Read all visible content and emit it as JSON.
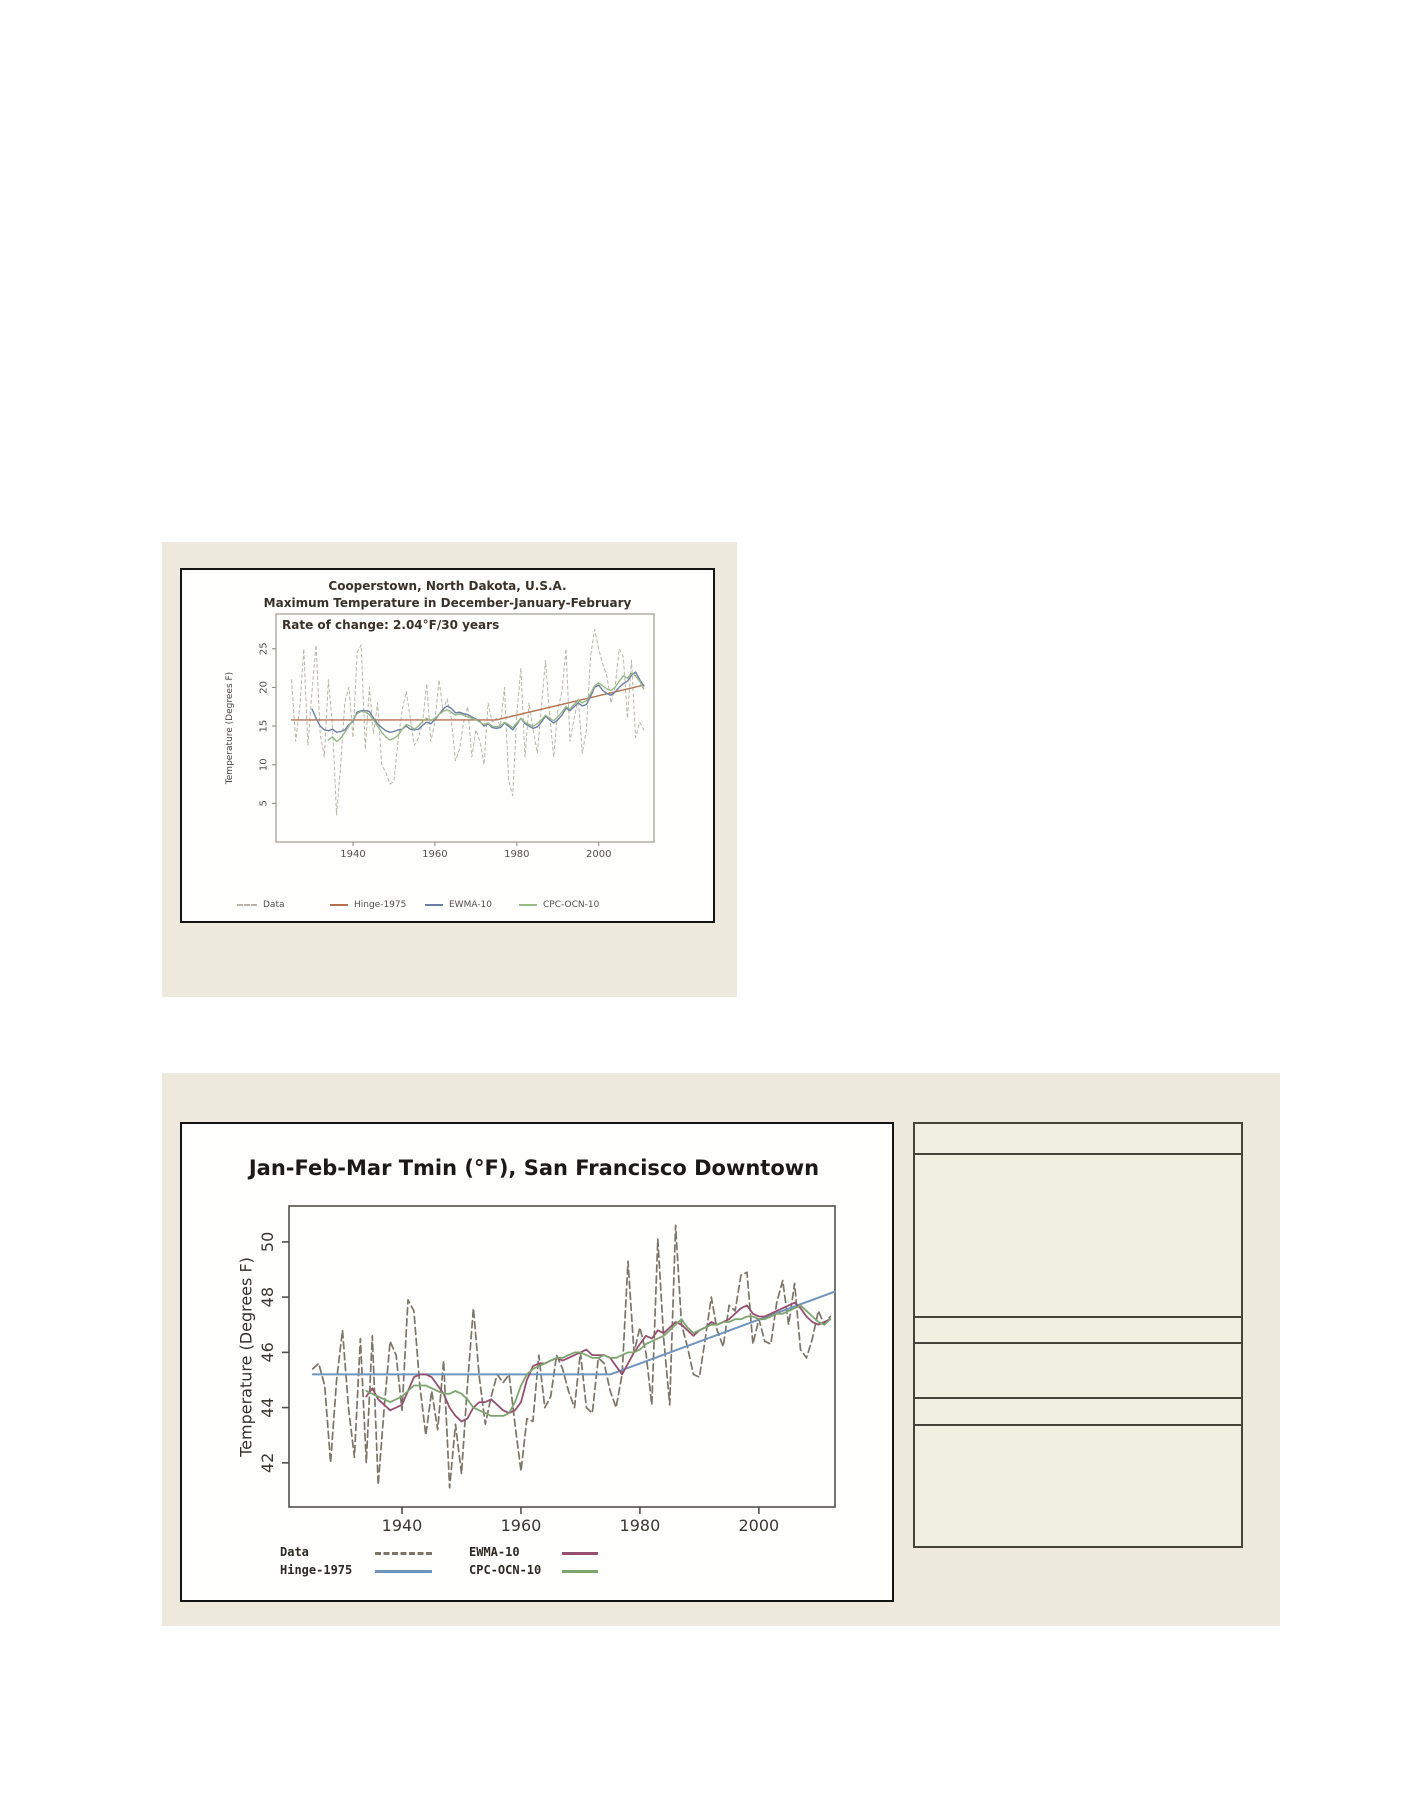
{
  "page": {
    "background": "#ffffff",
    "panel_color": "#edeadd",
    "table_cell_color": "#f1eee2",
    "table_border_color": "#45433a"
  },
  "chart_data": [
    {
      "type": "line",
      "title": "Cooperstown, North Dakota, U.S.A.",
      "subtitle": "Maximum Temperature in December-January-February",
      "annotation": "Rate of change: 2.04°F/30 years",
      "xlabel": "",
      "ylabel": "Temperature (Degrees F)",
      "xticks": [
        1940,
        1960,
        1980,
        2000
      ],
      "yticks": [
        5,
        10,
        15,
        20,
        25
      ],
      "xlim": [
        1921.2,
        2013.5
      ],
      "ylim": [
        0,
        29.5
      ],
      "grid": false,
      "legend_position": "bottom",
      "axis_color": "#8a8578",
      "text_color": "#55504a",
      "series": [
        {
          "name": "Data",
          "color": "#b9b4a6",
          "width": 1,
          "dash": [
            3,
            3
          ],
          "x_start": 1925,
          "x_step": 1,
          "values": [
            21,
            13,
            17.5,
            25,
            12.5,
            19.5,
            25.5,
            14,
            11,
            21,
            15,
            3.5,
            10,
            18,
            20,
            13.5,
            24.5,
            25.5,
            12,
            20,
            14,
            18,
            10,
            9,
            7.5,
            7.8,
            13,
            17,
            19.5,
            16,
            12.5,
            13.5,
            15.5,
            20.5,
            13,
            15.5,
            21,
            17,
            18.5,
            16,
            10.5,
            12,
            15.5,
            17.5,
            11,
            14.5,
            13,
            10,
            18,
            15.5,
            16,
            15,
            20,
            8,
            6,
            16.5,
            22.5,
            11,
            18,
            14.5,
            11.5,
            17.5,
            23.5,
            16.5,
            11,
            17,
            19.5,
            25,
            13,
            16,
            18.5,
            11.5,
            14.5,
            24,
            27.5,
            25,
            23,
            21.5,
            18,
            20,
            25,
            24,
            16,
            23.5,
            13.5,
            15.5,
            14.5
          ]
        },
        {
          "name": "Hinge-1975",
          "color": "#b5714e",
          "width": 1.4,
          "dash": null,
          "x": [
            1925,
            1975,
            2011
          ],
          "values": [
            15.8,
            15.8,
            20.3
          ]
        },
        {
          "name": "EWMA-10",
          "color": "#6d7fa6",
          "width": 1.4,
          "dash": null,
          "x_start": 1930,
          "x_step": 1,
          "values": [
            17.2,
            16,
            15,
            14.5,
            14.4,
            14.6,
            14.2,
            14.3,
            14.5,
            15.2,
            15.6,
            16.8,
            17,
            17,
            16.9,
            16,
            15.3,
            14.8,
            14.4,
            14.2,
            14.3,
            14.5,
            14.6,
            15,
            14.6,
            14.5,
            14.6,
            15.1,
            15.5,
            15.3,
            15.8,
            16.5,
            17.2,
            17.6,
            17.3,
            16.7,
            16.8,
            16.6,
            16.5,
            16.2,
            15.9,
            15.6,
            15,
            15.3,
            14.8,
            14.7,
            14.8,
            15.4,
            15,
            14.5,
            15.2,
            16,
            15.3,
            15,
            14.7,
            14.9,
            15.5,
            16.3,
            15.8,
            15.4,
            15.8,
            16.4,
            17.3,
            17,
            17.5,
            18,
            17.6,
            17.8,
            18.8,
            20,
            20.3,
            19.6,
            19.2,
            19,
            19.4,
            20,
            20.5,
            20.8,
            21.6,
            22,
            21,
            20.2
          ]
        },
        {
          "name": "CPC-OCN-10",
          "color": "#97b985",
          "width": 1.4,
          "dash": null,
          "x_start": 1934,
          "x_step": 1,
          "values": [
            13.2,
            13.6,
            13,
            13.4,
            14.2,
            15,
            15.8,
            16.6,
            16.9,
            16.8,
            16.5,
            15.8,
            15,
            14.2,
            13.6,
            13.2,
            13.4,
            13.8,
            14.6,
            15.2,
            15,
            14.6,
            15,
            15.6,
            16,
            15.7,
            16,
            16.5,
            16.9,
            17.1,
            16.8,
            16.4,
            16.6,
            16.4,
            16.2,
            16,
            15.8,
            15.5,
            15.2,
            15.4,
            15,
            14.9,
            15,
            15.5,
            15.2,
            14.8,
            15.4,
            16,
            15.5,
            15.2,
            15,
            15.3,
            15.8,
            16.4,
            16,
            15.7,
            16.2,
            16.8,
            17.5,
            17.2,
            17.8,
            18.3,
            18,
            18.3,
            19.2,
            20.2,
            20.6,
            20.2,
            19.8,
            19.6,
            20,
            20.8,
            21.5,
            21.2,
            21.8,
            21.5,
            20.8,
            19.8
          ]
        }
      ]
    },
    {
      "type": "line",
      "title": "Jan-Feb-Mar Tmin (°F), San Francisco Downtown",
      "subtitle": "",
      "annotation": "",
      "xlabel": "",
      "ylabel": "Temperature (Degrees F)",
      "xticks": [
        1940,
        1960,
        1980,
        2000
      ],
      "yticks": [
        42,
        44,
        46,
        48,
        50
      ],
      "xlim": [
        1921,
        2012.8
      ],
      "ylim": [
        40.4,
        51.3
      ],
      "grid": false,
      "legend_position": "bottom",
      "axis_color": "#54504a",
      "text_color": "#3c3831",
      "series": [
        {
          "name": "Data",
          "color": "#7b7467",
          "width": 1.7,
          "dash": [
            7,
            4
          ],
          "x_start": 1925,
          "x_step": 1,
          "values": [
            45.4,
            45.6,
            44.8,
            42.0,
            45.0,
            46.8,
            44.0,
            42.2,
            46.5,
            42.0,
            46.6,
            41.2,
            44.0,
            46.4,
            45.9,
            43.9,
            47.9,
            47.5,
            44.8,
            43.0,
            44.6,
            43.2,
            45.7,
            41.1,
            43.4,
            41.6,
            44.8,
            47.6,
            45.1,
            43.4,
            44.4,
            45.2,
            44.9,
            45.2,
            43.4,
            41.7,
            43.6,
            43.5,
            45.9,
            44.0,
            44.4,
            45.9,
            45.4,
            44.6,
            44.0,
            46.0,
            44.0,
            43.8,
            45.8,
            45.6,
            44.6,
            44.0,
            45.2,
            49.3,
            46.0,
            46.9,
            46.0,
            44.1,
            50.1,
            46.5,
            44.1,
            50.6,
            47.0,
            46.2,
            45.2,
            45.1,
            46.5,
            48.0,
            46.8,
            46.2,
            47.7,
            47.5,
            48.8,
            48.9,
            46.3,
            47.2,
            46.4,
            46.3,
            47.8,
            48.6,
            47.0,
            48.5,
            46.1,
            45.8,
            46.5,
            47.5,
            47.0,
            47.3
          ]
        },
        {
          "name": "Hinge-1975",
          "color": "#6f94bd",
          "width": 2,
          "dash": null,
          "x": [
            1925,
            1975,
            2012.8
          ],
          "values": [
            45.2,
            45.2,
            48.2
          ]
        },
        {
          "name": "EWMA-10",
          "color": "#96506e",
          "width": 1.8,
          "dash": null,
          "x_start": 1934,
          "x_step": 1,
          "values": [
            44.4,
            44.7,
            44.3,
            44.1,
            43.9,
            44.0,
            44.1,
            44.6,
            45.1,
            45.2,
            45.2,
            45.1,
            44.8,
            44.5,
            44.0,
            43.7,
            43.5,
            43.6,
            44.0,
            44.2,
            44.2,
            44.3,
            44.1,
            43.9,
            43.8,
            43.9,
            44.2,
            45.0,
            45.5,
            45.6,
            45.6,
            45.7,
            45.8,
            45.7,
            45.8,
            45.9,
            46.0,
            46.1,
            45.9,
            45.9,
            45.9,
            45.8,
            45.5,
            45.2,
            45.6,
            46.0,
            46.3,
            46.6,
            46.5,
            46.8,
            46.7,
            46.9,
            47.1,
            47.0,
            46.8,
            46.6,
            46.8,
            46.9,
            47.1,
            47.0,
            47.1,
            47.2,
            47.4,
            47.6,
            47.7,
            47.4,
            47.3,
            47.3,
            47.4,
            47.5,
            47.6,
            47.7,
            47.8,
            47.6,
            47.3,
            47.1,
            47.0,
            47.1,
            47.2
          ]
        },
        {
          "name": "CPC-OCN-10",
          "color": "#7fa56f",
          "width": 1.8,
          "dash": null,
          "x_start": 1934,
          "x_step": 1,
          "values": [
            44.6,
            44.5,
            44.4,
            44.3,
            44.2,
            44.3,
            44.4,
            44.6,
            44.8,
            44.8,
            44.8,
            44.7,
            44.6,
            44.5,
            44.5,
            44.6,
            44.5,
            44.3,
            44.0,
            43.9,
            43.8,
            43.7,
            43.7,
            43.7,
            43.8,
            44.2,
            44.8,
            45.2,
            45.4,
            45.5,
            45.6,
            45.7,
            45.8,
            45.8,
            45.9,
            46.0,
            46.0,
            45.9,
            45.8,
            45.8,
            45.9,
            45.8,
            45.8,
            45.9,
            46.0,
            46.0,
            46.1,
            46.3,
            46.4,
            46.5,
            46.6,
            46.8,
            47.0,
            47.2,
            46.9,
            46.7,
            46.8,
            46.9,
            47.0,
            47.0,
            47.1,
            47.1,
            47.2,
            47.2,
            47.3,
            47.3,
            47.2,
            47.2,
            47.3,
            47.4,
            47.4,
            47.5,
            47.6,
            47.7,
            47.5,
            47.3,
            47.1,
            47.0,
            47.2
          ]
        }
      ]
    }
  ]
}
